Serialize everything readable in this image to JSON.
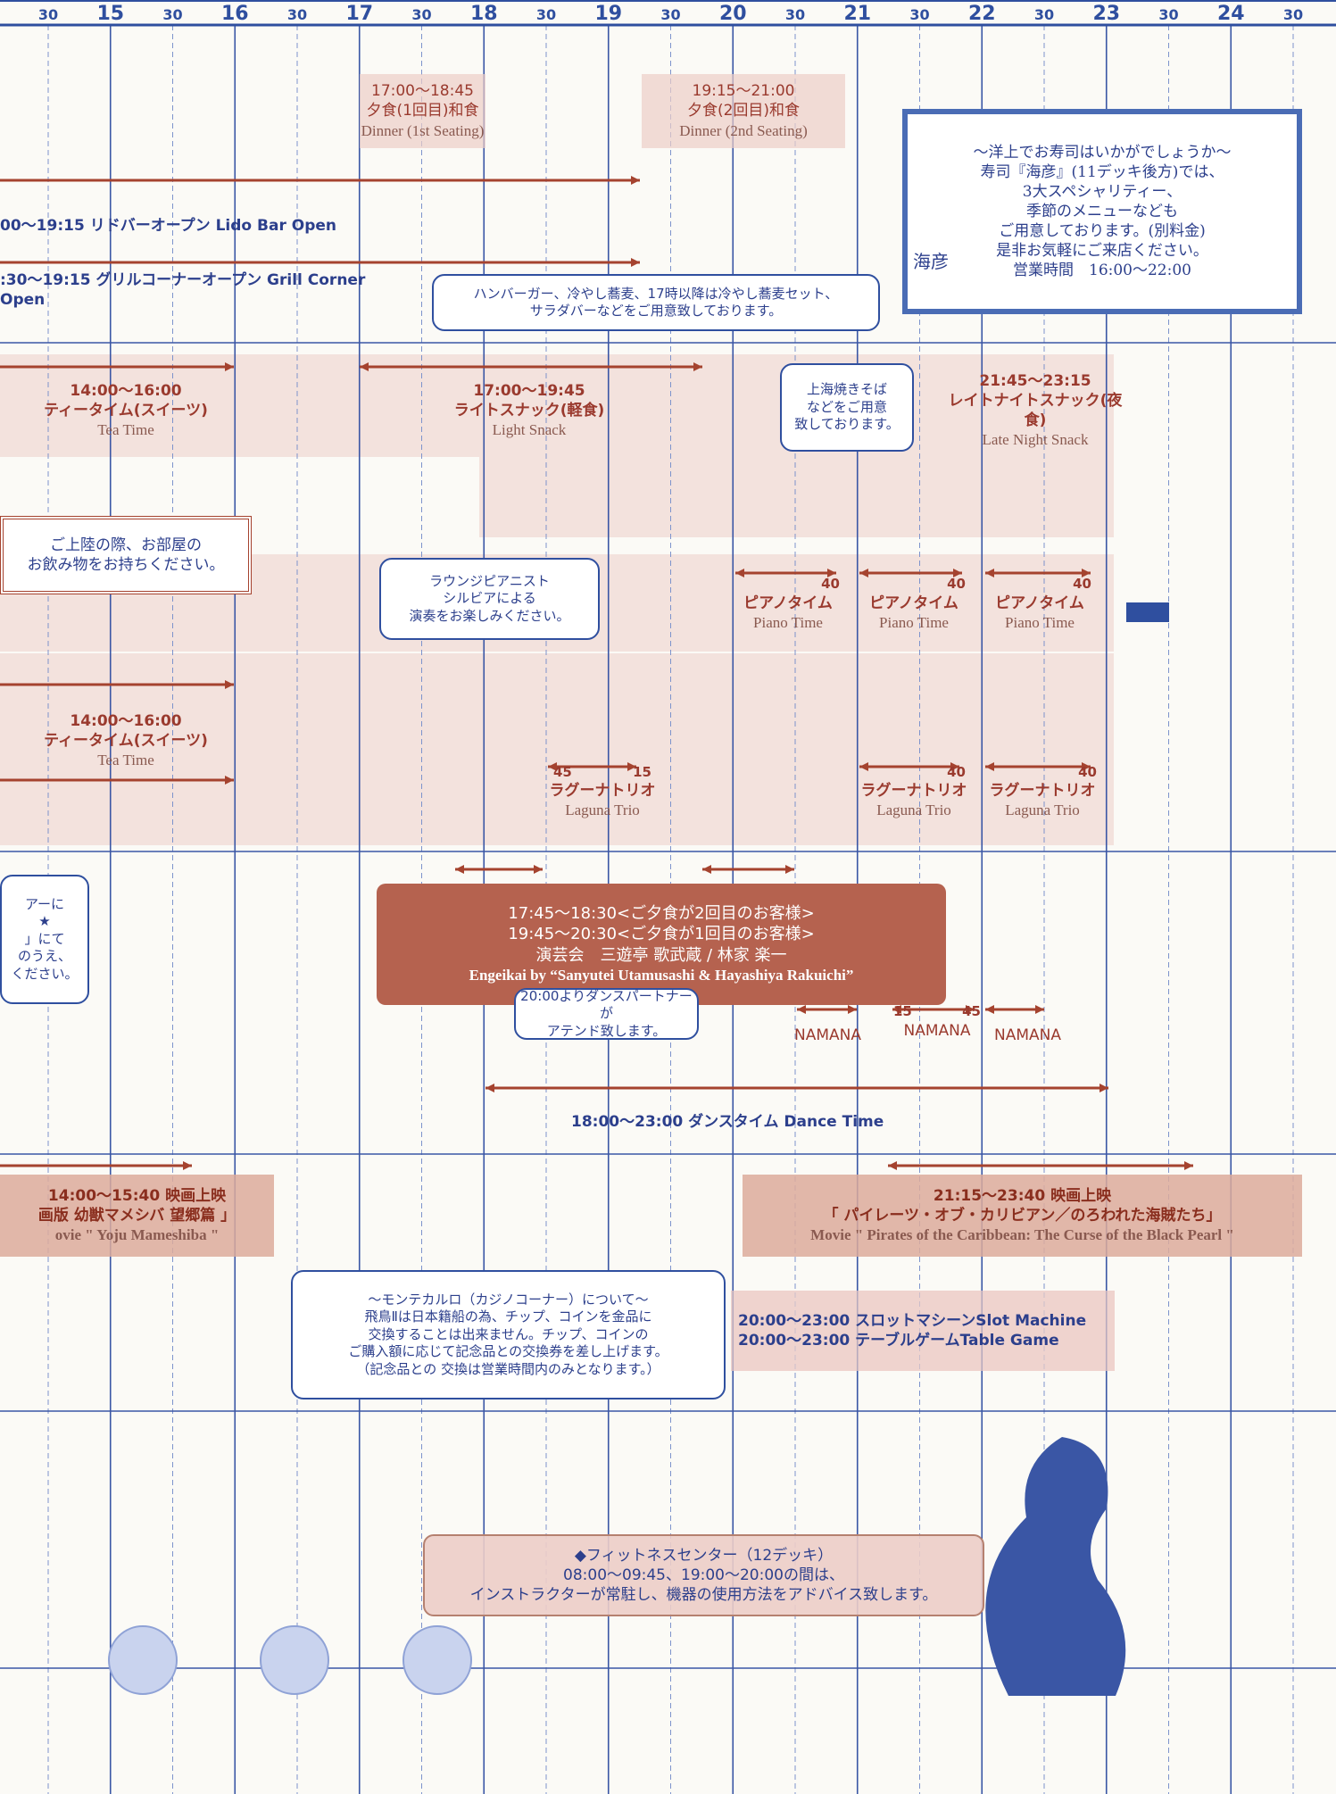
{
  "time_header": [
    "30",
    "15",
    "30",
    "16",
    "30",
    "17",
    "30",
    "18",
    "30",
    "19",
    "30",
    "20",
    "30",
    "21",
    "30",
    "22",
    "30",
    "23",
    "30",
    "24",
    "30"
  ],
  "items": [
    {
      "lines": [
        "17:00〜18:45",
        "夕食(1回目)和食",
        "Dinner (1st Seating)"
      ]
    },
    {
      "lines": [
        "19:15〜21:00",
        "夕食(2回目)和食",
        "Dinner (2nd Seating)"
      ]
    },
    {
      "logo": "海彦",
      "lines": [
        "〜洋上でお寿司はいかがでしょうか〜",
        "寿司『海彦』(11デッキ後方)では、",
        "3大スペシャリティー、",
        "季節のメニューなども",
        "ご用意しております。(別料金)",
        "是非お気軽にご来店ください。",
        "営業時間　16:00〜22:00"
      ]
    },
    {
      "lines": [
        "00〜19:15 リドバーオープン Lido Bar Open"
      ]
    },
    {
      "lines": [
        ":30〜19:15 グリルコーナーオープン Grill Corner Open"
      ]
    },
    {
      "lines": [
        "ハンバーガー、冷やし蕎麦、17時以降は冷やし蕎麦セット、",
        "サラダバーなどをご用意致しております。"
      ]
    },
    {
      "lines": [
        "14:00〜16:00",
        "ティータイム(スイーツ)",
        "Tea Time"
      ]
    },
    {
      "lines": [
        "17:00〜19:45",
        "ライトスナック(軽食)",
        "Light Snack"
      ]
    },
    {
      "lines": [
        "上海焼きそば",
        "などをご用意",
        "致しております。"
      ]
    },
    {
      "lines": [
        "21:45〜23:15",
        "レイトナイトスナック(夜食)",
        "Late Night Snack"
      ]
    },
    {
      "lines": [
        "ご上陸の際、お部屋の",
        "お飲み物をお持ちください。"
      ]
    },
    {
      "lines": [
        "ラウンジピアニスト",
        "シルビアによる",
        "演奏をお楽しみください。"
      ]
    },
    {
      "arrow_labels": [
        "40"
      ],
      "lines": [
        "ピアノタイム",
        "Piano Time"
      ]
    },
    {
      "arrow_labels": [
        "40"
      ],
      "lines": [
        "ピアノタイム",
        "Piano Time"
      ]
    },
    {
      "arrow_labels": [
        "40"
      ],
      "lines": [
        "ピアノタイム",
        "Piano Time"
      ]
    },
    {
      "lines": [
        "14:00〜16:00",
        "ティータイム(スイーツ)",
        "Tea Time"
      ]
    },
    {
      "arrow_labels": [
        "45",
        "15"
      ],
      "lines": [
        "ラグーナトリオ",
        "Laguna Trio"
      ]
    },
    {
      "arrow_labels": [
        "40"
      ],
      "lines": [
        "ラグーナトリオ",
        "Laguna Trio"
      ]
    },
    {
      "arrow_labels": [
        "40"
      ],
      "lines": [
        "ラグーナトリオ",
        "Laguna Trio"
      ]
    },
    {
      "lines": [
        "アーに",
        "★",
        "」にて",
        "のうえ、",
        "ください。"
      ]
    },
    {
      "lines": [
        "17:45〜18:30<ご夕食が2回目のお客様>",
        "19:45〜20:30<ご夕食が1回目のお客様>",
        "演芸会　三遊亭 歌武蔵 / 林家 楽一",
        "Engeikai by “Sanyutei Utamusashi & Hayashiya Rakuichi”"
      ]
    },
    {
      "lines": [
        "20:00よりダンスパートナーが",
        "アテンド致します。"
      ]
    },
    {
      "lines": [
        "NAMANA"
      ]
    },
    {
      "arrow_labels": [
        "15",
        "45"
      ],
      "lines": [
        "NAMANA"
      ]
    },
    {
      "lines": [
        "NAMANA"
      ]
    },
    {
      "lines": [
        "18:00〜23:00 ダンスタイム Dance Time"
      ]
    },
    {
      "lines": [
        "14:00〜15:40 映画上映",
        "画版 幼獣マメシバ 望郷篇 」",
        "ovie \" Yoju Mameshiba \""
      ]
    },
    {
      "lines": [
        "21:15〜23:40 映画上映",
        "「 パイレーツ・オブ・カリビアン／のろわれた海賊たち」",
        "Movie \" Pirates of the Caribbean: The Curse of the Black Pearl \""
      ]
    },
    {
      "lines": [
        "〜モンテカルロ（カジノコーナー）について〜",
        "飛鳥Ⅱは日本籍船の為、チップ、コインを金品に",
        "交換することは出来ません。チップ、コインの",
        "ご購入額に応じて記念品との交換券を差し上げます。",
        "（記念品との 交換は営業時間内のみとなります。）"
      ]
    },
    {
      "lines": [
        "20:00〜23:00 スロットマシーンSlot Machine",
        "20:00〜23:00 テーブルゲームTable Game"
      ]
    },
    {
      "lines": [
        "◆フィットネスセンター（12デッキ）",
        "08:00〜09:45、19:00〜20:00の間は、",
        "インストラクターが常駐し、機器の使用方法をアドバイス致します。"
      ]
    }
  ]
}
